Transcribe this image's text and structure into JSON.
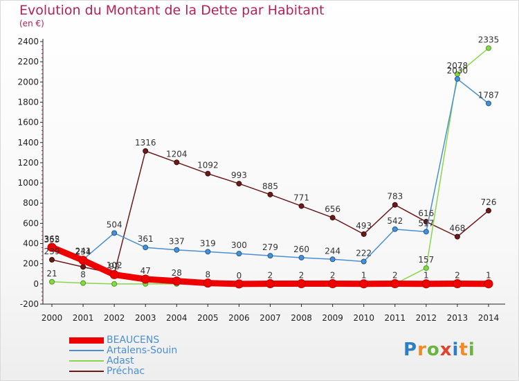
{
  "title": "Evolution du Montant de la Dette par Habitant",
  "subtitle": "(en €)",
  "logo": {
    "text": "Proxiti",
    "colors": [
      "#2e7fc2",
      "#f08a24",
      "#6cb33f",
      "#e0422b",
      "#2e7fc2",
      "#f08a24",
      "#6cb33f"
    ]
  },
  "chart_data": {
    "type": "line",
    "categories": [
      "2000",
      "2001",
      "2002",
      "2003",
      "2004",
      "2005",
      "2006",
      "2007",
      "2008",
      "2009",
      "2010",
      "2011",
      "2012",
      "2013",
      "2014"
    ],
    "ylim": [
      -200,
      2400
    ],
    "yticks": [
      -200,
      0,
      200,
      400,
      600,
      800,
      1000,
      1200,
      1400,
      1600,
      1800,
      2000,
      2200,
      2400
    ],
    "grid": false,
    "legend_position": "bottom-left",
    "series": [
      {
        "name": "BEAUCENS",
        "color": "#ee0000",
        "values": [
          362,
          234,
          92,
          47,
          28,
          8,
          0,
          2,
          2,
          2,
          1,
          2,
          1,
          2,
          1
        ],
        "labels": [
          "362",
          "234",
          "92",
          "47",
          "28",
          "8",
          "0",
          "2",
          "2",
          "2",
          "1",
          "2",
          "1",
          "2",
          "1"
        ]
      },
      {
        "name": "Artalens-Souin",
        "color": "#4a8fd1",
        "values": [
          355,
          241,
          504,
          361,
          337,
          319,
          300,
          279,
          260,
          244,
          222,
          542,
          517,
          2030,
          1787
        ],
        "labels": [
          "355",
          "241",
          "504",
          "361",
          "337",
          "319",
          "300",
          "279",
          "260",
          "244",
          "222",
          "542",
          "517",
          "2030",
          "1787"
        ]
      },
      {
        "name": "Adast",
        "color": "#88d64a",
        "values": [
          21,
          8,
          0,
          0,
          0,
          0,
          0,
          0,
          0,
          0,
          0,
          0,
          157,
          2078,
          2335
        ],
        "labels": [
          "21",
          "8",
          "",
          "",
          "",
          "",
          "",
          "",
          "",
          "",
          "",
          "",
          "157",
          "2078",
          "2335"
        ]
      },
      {
        "name": "Préchac",
        "color": "#6b1a1a",
        "values": [
          239,
          168,
          102,
          1316,
          1204,
          1092,
          993,
          885,
          771,
          656,
          493,
          783,
          616,
          468,
          726
        ],
        "labels": [
          "239",
          "",
          "102",
          "1316",
          "1204",
          "1092",
          "993",
          "885",
          "771",
          "656",
          "493",
          "783",
          "616",
          "468",
          "726"
        ]
      }
    ]
  }
}
